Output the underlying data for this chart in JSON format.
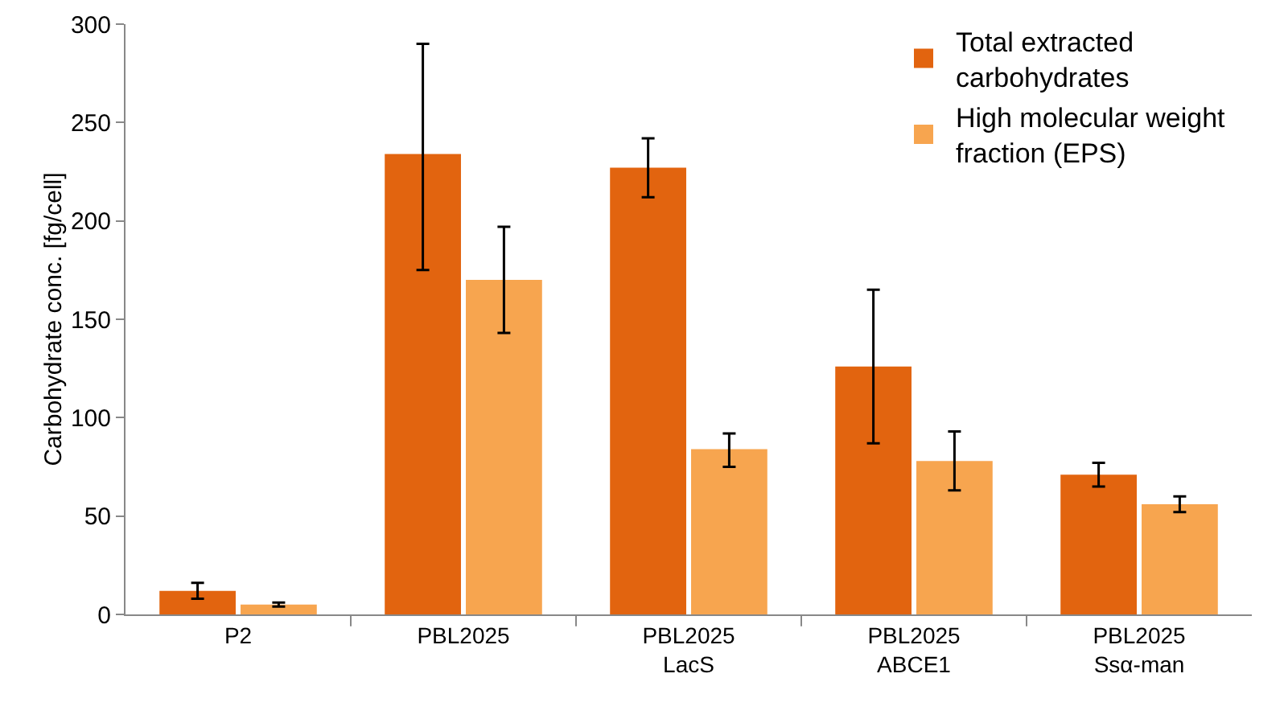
{
  "chart_data": {
    "type": "bar",
    "ylabel": "Carbohydrate conc. [fg/cell]",
    "categories": [
      "P2",
      "PBL2025",
      "PBL2025\nLacS",
      "PBL2025\nABCE1",
      "PBL2025\nSsα-man"
    ],
    "series": [
      {
        "name": "Total extracted\ncarbohydrates",
        "color": "#e2640f",
        "values": [
          12,
          234,
          227,
          126,
          71
        ],
        "errors": [
          [
            8,
            16
          ],
          [
            175,
            290
          ],
          [
            212,
            242
          ],
          [
            87,
            165
          ],
          [
            65,
            77
          ]
        ]
      },
      {
        "name": "High molecular weight\nfraction (EPS)",
        "color": "#f7a54f",
        "values": [
          5,
          170,
          84,
          78,
          56
        ],
        "errors": [
          [
            4,
            6
          ],
          [
            143,
            197
          ],
          [
            75,
            92
          ],
          [
            63,
            93
          ],
          [
            52,
            60
          ]
        ]
      }
    ],
    "ylim": [
      0,
      300
    ],
    "yticks": [
      0,
      50,
      100,
      150,
      200,
      250,
      300
    ],
    "grid": false,
    "legend": "top right"
  }
}
